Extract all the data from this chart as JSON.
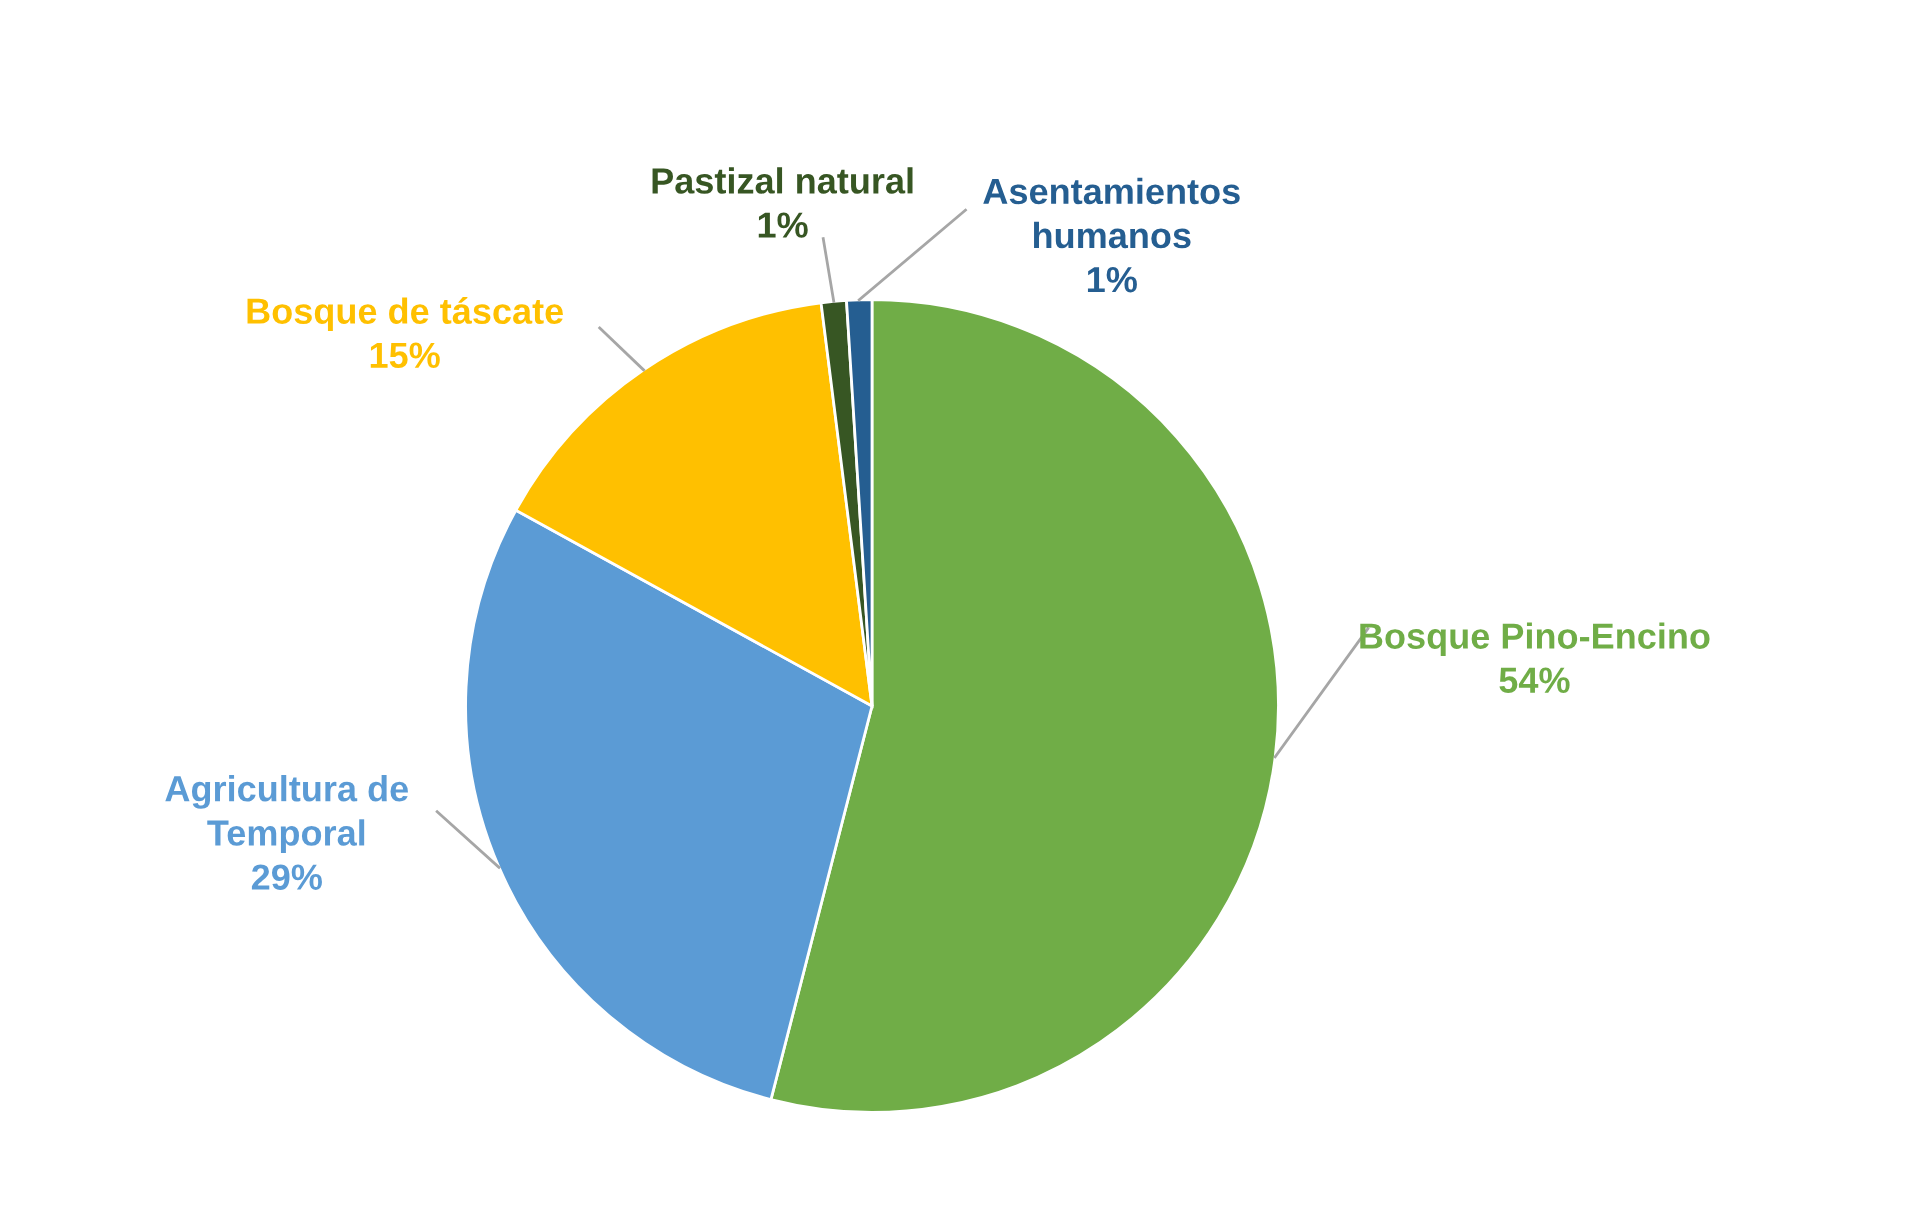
{
  "chart_data": {
    "type": "pie",
    "categories": [
      "Bosque Pino-Encino",
      "Agricultura de\nTemporal",
      "Bosque de táscate",
      "Pastizal natural",
      "Asentamientos\nhumanos"
    ],
    "values": [
      54,
      29,
      15,
      1,
      1
    ],
    "colors": [
      "#70ad47",
      "#5b9bd5",
      "#ffc000",
      "#375623",
      "#255e91"
    ],
    "value_labels": [
      "54%",
      "29%",
      "15%",
      "1%",
      "1%"
    ]
  }
}
